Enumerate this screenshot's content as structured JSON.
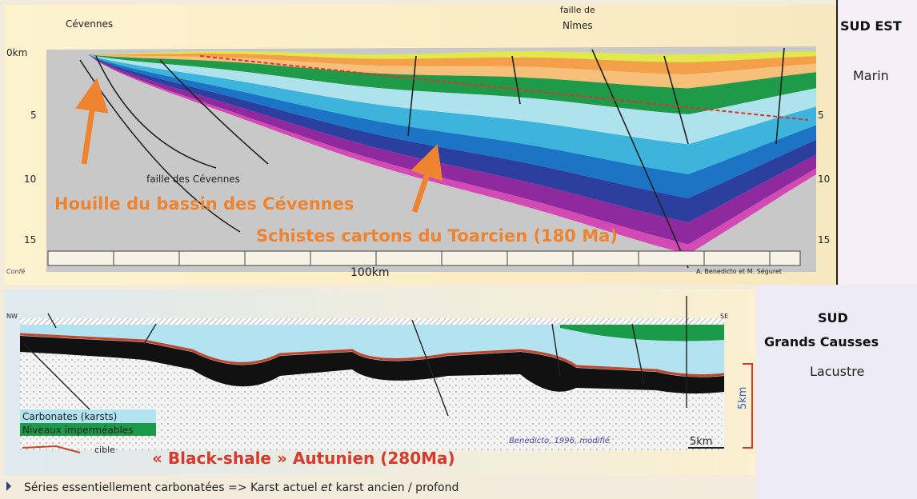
{
  "top_section": {
    "place_left": "Cévennes",
    "fault_right": [
      "faille de",
      "Nîmes"
    ],
    "fault_left": "faille des Cévennes",
    "coal": "Houille du bassin des Cévennes",
    "schist": "Schistes cartons du Toarcien (180 Ma)",
    "depth_left": [
      "0km",
      "5",
      "10",
      "15"
    ],
    "depth_right": [
      "5",
      "10",
      "15"
    ],
    "scale": "100km",
    "credit": "A. Benedicto et M. Séguret",
    "source": "Confé"
  },
  "top_side": {
    "title": "SUD EST",
    "subtitle": "Marin"
  },
  "bottom_section": {
    "nw": "NW",
    "se": "SE",
    "legend": [
      "Carbonates (karsts)",
      "Niveaux imperméables",
      "cible"
    ],
    "shale": "« Black-shale » Autunien (280Ma)",
    "credit": "Benedicto, 1996, modifié",
    "scale_h": "5km",
    "scale_v": "5km"
  },
  "bottom_side": {
    "title": "SUD",
    "subtitle": "Grands Causses",
    "note": "Lacustre"
  },
  "footer": {
    "parts": [
      "Séries essentiellement carbonatées => Karst actuel ",
      "et",
      " karst ancien / profond"
    ]
  }
}
